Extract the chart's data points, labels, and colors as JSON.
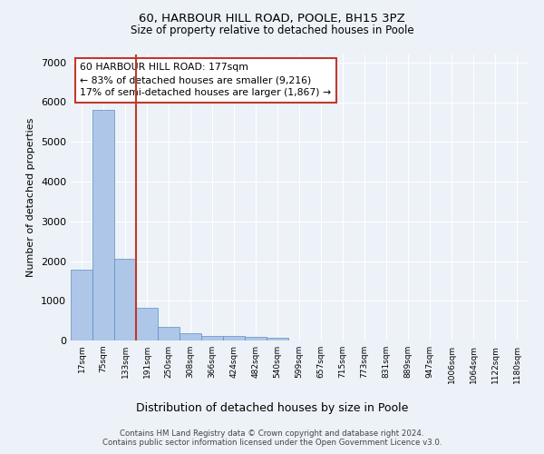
{
  "title1": "60, HARBOUR HILL ROAD, POOLE, BH15 3PZ",
  "title2": "Size of property relative to detached houses in Poole",
  "xlabel": "Distribution of detached houses by size in Poole",
  "ylabel": "Number of detached properties",
  "bin_labels": [
    "17sqm",
    "75sqm",
    "133sqm",
    "191sqm",
    "250sqm",
    "308sqm",
    "366sqm",
    "424sqm",
    "482sqm",
    "540sqm",
    "599sqm",
    "657sqm",
    "715sqm",
    "773sqm",
    "831sqm",
    "889sqm",
    "947sqm",
    "1006sqm",
    "1064sqm",
    "1122sqm",
    "1180sqm"
  ],
  "bar_values": [
    1780,
    5800,
    2060,
    830,
    350,
    190,
    120,
    105,
    95,
    65,
    0,
    0,
    0,
    0,
    0,
    0,
    0,
    0,
    0,
    0,
    0
  ],
  "bar_color": "#aec6e8",
  "bar_edge_color": "#5a8fc2",
  "vline_color": "#c0392b",
  "annotation_text": "60 HARBOUR HILL ROAD: 177sqm\n← 83% of detached houses are smaller (9,216)\n17% of semi-detached houses are larger (1,867) →",
  "annotation_box_color": "#c0392b",
  "ylim": [
    0,
    7200
  ],
  "footer1": "Contains HM Land Registry data © Crown copyright and database right 2024.",
  "footer2": "Contains public sector information licensed under the Open Government Licence v3.0.",
  "bg_color": "#edf2f8",
  "plot_bg_color": "#edf2f8"
}
